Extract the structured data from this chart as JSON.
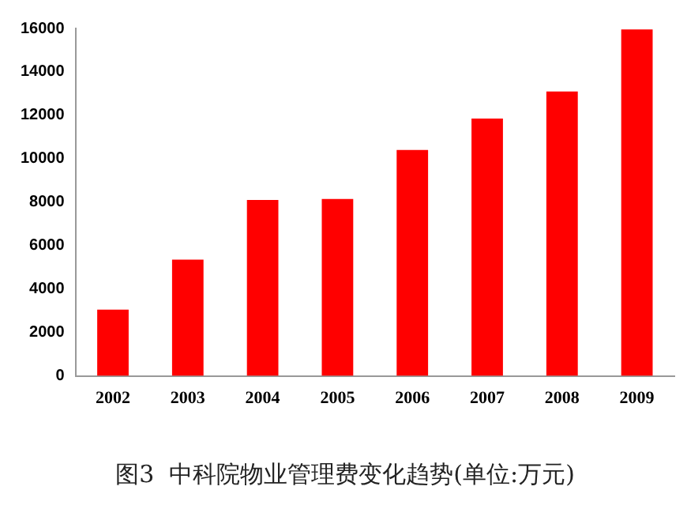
{
  "chart_data": {
    "type": "bar",
    "title": "图3  中科院物业管理费变化趋势(单位:万元)",
    "categories": [
      "2002",
      "2003",
      "2004",
      "2005",
      "2006",
      "2007",
      "2008",
      "2009"
    ],
    "values": [
      3050,
      5350,
      8100,
      8150,
      10400,
      11850,
      13100,
      15950
    ],
    "color": "#ff0000",
    "ylim": [
      0,
      16000
    ],
    "yticks": [
      0,
      2000,
      4000,
      6000,
      8000,
      10000,
      12000,
      14000,
      16000
    ],
    "grid": false,
    "legend": false
  }
}
